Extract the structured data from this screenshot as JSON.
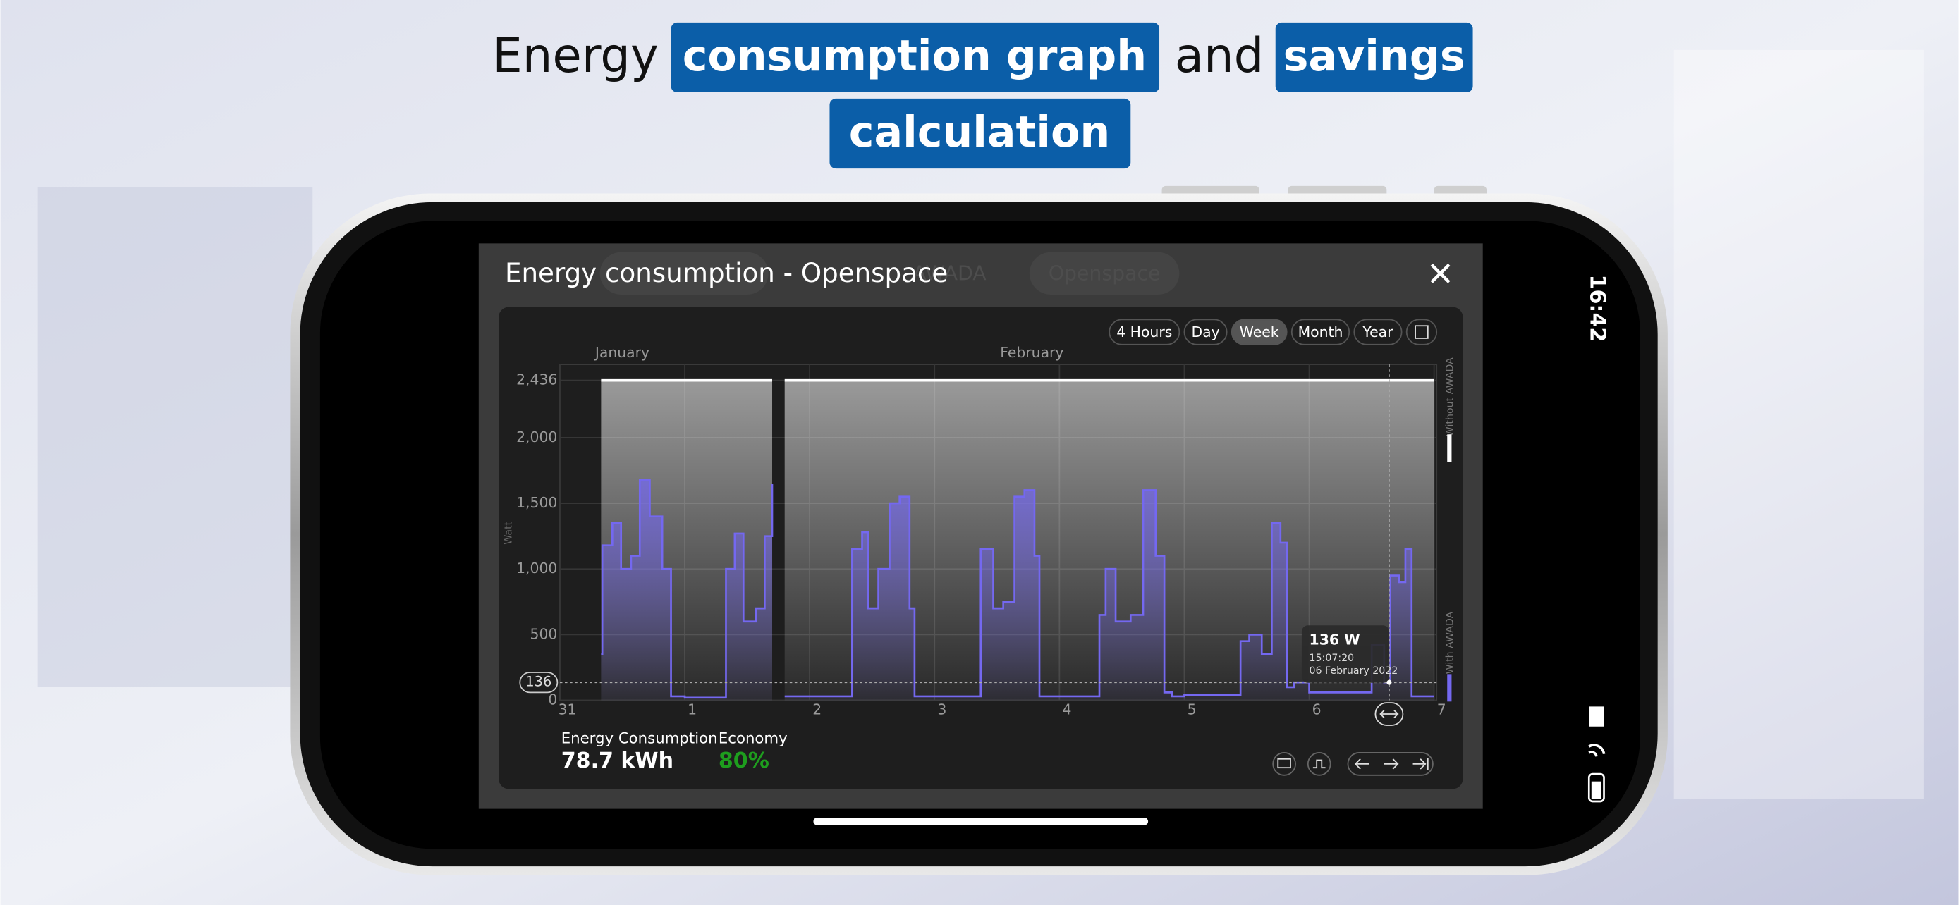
{
  "header": {
    "parts": [
      "Energy",
      "consumption graph",
      "and",
      "savings",
      "calculation"
    ]
  },
  "status_bar": {
    "time": "16:42"
  },
  "background_ui": [
    "AWADA",
    "Openspace"
  ],
  "dialog": {
    "title": "Energy consumption - Openspace",
    "ranges": [
      "4 Hours",
      "Day",
      "Week",
      "Month",
      "Year"
    ],
    "selected_range": 2,
    "summary": [
      {
        "label": "Energy Consumption",
        "value": "78.7 kWh",
        "color": "#ffffff"
      },
      {
        "label": "Economy",
        "value": "80%",
        "color": "#1e9e1e"
      }
    ]
  },
  "chart_data": {
    "type": "line",
    "step": true,
    "grid": true,
    "y_label": "Watt",
    "top_labels": [
      "January",
      "February"
    ],
    "xlim": [
      0,
      7.02
    ],
    "xticks": [
      {
        "value": 0,
        "label": "31"
      },
      1,
      2,
      3,
      4,
      5,
      6,
      7
    ],
    "ylim": [
      0,
      2557
    ],
    "yticks": [
      0,
      500,
      {
        "value": 1000,
        "label": "1,000"
      },
      {
        "value": 1500,
        "label": "1,500"
      },
      {
        "value": 2000,
        "label": "2,000"
      },
      {
        "value": 2436,
        "label": "2,436"
      }
    ],
    "x": [
      0.33,
      0.34,
      0.42,
      0.49,
      0.57,
      0.64,
      0.72,
      0.82,
      0.89,
      1.0,
      1.33,
      1.4,
      1.47,
      1.57,
      1.64,
      1.7,
      1.74,
      1.8,
      2.0,
      2.34,
      2.42,
      2.47,
      2.55,
      2.64,
      2.72,
      2.8,
      2.84,
      3.0,
      3.37,
      3.47,
      3.55,
      3.64,
      3.72,
      3.8,
      3.84,
      4.0,
      4.32,
      4.37,
      4.45,
      4.57,
      4.67,
      4.77,
      4.84,
      4.9,
      5.0,
      5.45,
      5.52,
      5.62,
      5.7,
      5.77,
      5.82,
      5.88,
      6.0,
      6.5,
      6.6,
      6.65,
      6.72,
      6.77,
      6.82,
      7.0
    ],
    "series": [
      {
        "name": "Without AWADA",
        "color": "#ffffff",
        "values": [
          2436,
          2436,
          2436,
          2436,
          2436,
          2436,
          2436,
          2436,
          2436,
          2436,
          2436,
          2436,
          2436,
          2436,
          2436,
          2436,
          null,
          2436,
          2436,
          2436,
          2436,
          2436,
          2436,
          2436,
          2436,
          2436,
          2436,
          2436,
          2436,
          2436,
          2436,
          2436,
          2436,
          2436,
          2436,
          2436,
          2436,
          2436,
          2436,
          2436,
          2436,
          2436,
          2436,
          2436,
          2436,
          2436,
          2436,
          2436,
          2436,
          2436,
          2436,
          2436,
          2436,
          2436,
          2436,
          2436,
          2436,
          2436,
          2436,
          2436
        ]
      },
      {
        "name": "With AWADA",
        "color": "#7468f0",
        "values": [
          350,
          1180,
          1350,
          1000,
          1100,
          1680,
          1400,
          1000,
          30,
          20,
          1000,
          1270,
          600,
          700,
          1250,
          1650,
          null,
          30,
          30,
          1150,
          1280,
          700,
          1000,
          1500,
          1550,
          700,
          30,
          30,
          1150,
          700,
          750,
          1550,
          1600,
          1100,
          30,
          30,
          650,
          1000,
          600,
          650,
          1600,
          1100,
          60,
          30,
          40,
          450,
          500,
          350,
          1350,
          1200,
          100,
          136,
          60,
          420,
          136,
          950,
          900,
          1150,
          30,
          30
        ]
      }
    ],
    "cursor": {
      "x": 6.64,
      "y": 136,
      "label": "136 W",
      "time": "15:07:20",
      "date": "06 February 2022"
    }
  }
}
